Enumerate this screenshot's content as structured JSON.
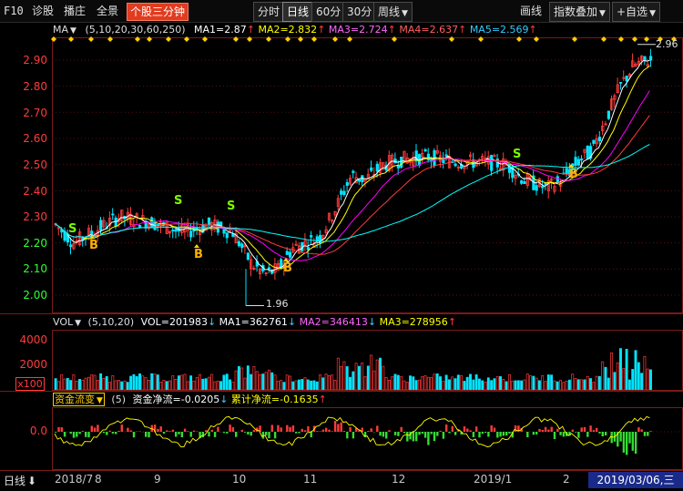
{
  "toolbar": {
    "f10": "F10",
    "diagnose": "诊股",
    "replay": "播庄",
    "panorama": "全景",
    "minute_chart": "个股三分钟",
    "periods": [
      "分时",
      "日线",
      "60分",
      "30分"
    ],
    "week": "周线",
    "draw": "画线",
    "overlay": "指数叠加",
    "watchlist": "+自选"
  },
  "main_legend": {
    "name": "MA",
    "params": "(5,10,20,30,60,250)",
    "ma1": "MA1=2.87",
    "ma2": "MA2=2.832",
    "ma3": "MA3=2.724",
    "ma4": "MA4=2.637",
    "ma5": "MA5=2.569",
    "high_marker": "2.96",
    "low_marker": "1.96"
  },
  "main_axis": [
    "2.90",
    "2.80",
    "2.70",
    "2.60",
    "2.50",
    "2.40",
    "2.30",
    "2.20",
    "2.10",
    "2.00"
  ],
  "signals": [
    "S",
    "S",
    "S",
    "S",
    "B",
    "B",
    "B",
    "B"
  ],
  "vol_legend": {
    "name": "VOL",
    "params": "(5,10,20)",
    "vol": "VOL=201983",
    "ma1": "MA1=362761",
    "ma2": "MA2=346413",
    "ma3": "MA3=278956"
  },
  "vol_axis": [
    "4000",
    "2000",
    "x100"
  ],
  "fund_legend": {
    "name": "资金流变",
    "params": "(5)",
    "net": "资金净流=-0.0205",
    "cumulative": "累计净流=-0.1635"
  },
  "fund_axis": [
    "0.0"
  ],
  "bottom": {
    "period_label": "日线",
    "months": [
      "2018/7",
      "8",
      "9",
      "10",
      "11",
      "12",
      "2019/1",
      "2"
    ],
    "cursor_date": "2019/03/06,三"
  },
  "colors": {
    "up": "#ff3b3b",
    "down": "#00e5ff",
    "ma1": "#ffffff",
    "ma2": "#ffff00",
    "ma3": "#ff00ff",
    "ma4": "#ff3b3b",
    "ma5": "#00ffff",
    "axis_text": "#ff3b3b",
    "signal": "#ffd600",
    "signal_s": "#7cfc00"
  }
}
